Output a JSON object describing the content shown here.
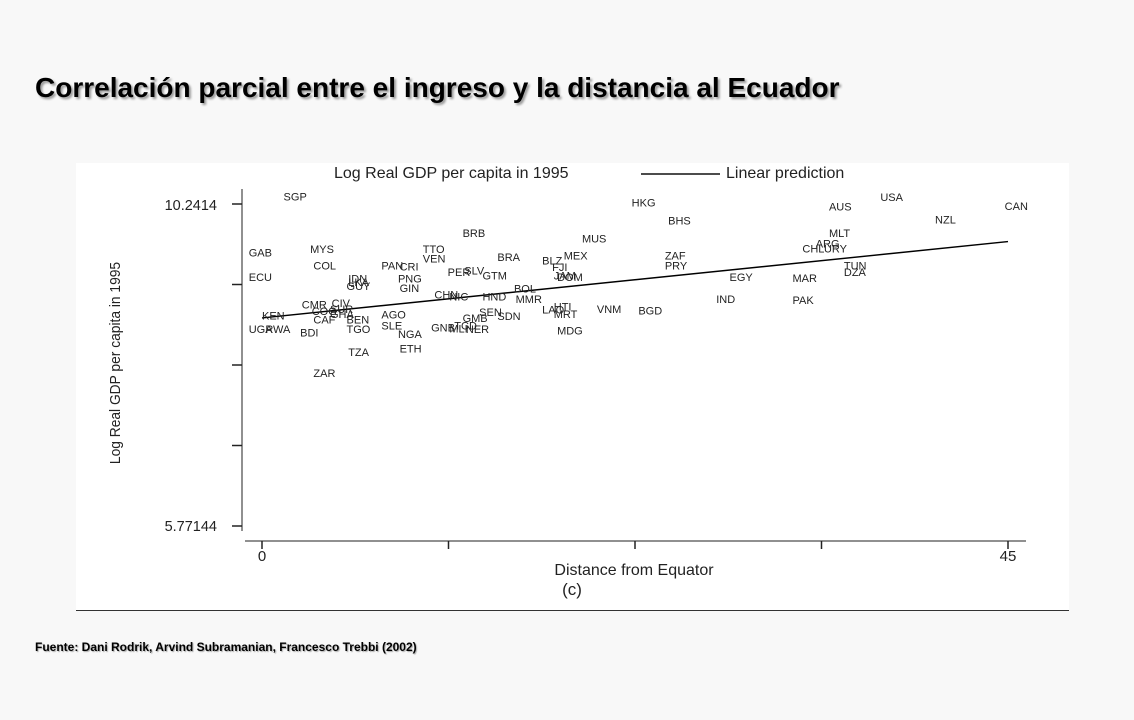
{
  "slide": {
    "title": "Correlación parcial entre el ingreso y la distancia al Ecuador",
    "source": "Fuente: Dani Rodrik, Arvind Subramanian, Francesco Trebbi (2002)"
  },
  "chart_data": {
    "type": "scatter",
    "xlabel": "Distance from Equator",
    "ylabel": "Log Real GDP per capita in 1995",
    "caption": "(c)",
    "xlim": [
      0,
      45
    ],
    "ylim": [
      5.77144,
      10.2414
    ],
    "x_tick_labels": [
      "0",
      "45"
    ],
    "y_tick_labels": [
      "10.2414",
      "5.77144"
    ],
    "legend": [
      "Log Real GDP per capita in 1995",
      "Linear prediction"
    ],
    "legend_position": "top",
    "series": [
      {
        "name": "Log Real GDP per capita in 1995",
        "marker": "country-code",
        "points": [
          {
            "label": "SGP",
            "x": 1.3,
            "y": 10.29
          },
          {
            "label": "HKG",
            "x": 22.3,
            "y": 10.21
          },
          {
            "label": "USA",
            "x": 37.3,
            "y": 10.28
          },
          {
            "label": "AUS",
            "x": 34.2,
            "y": 10.15
          },
          {
            "label": "CAN",
            "x": 44.8,
            "y": 10.16
          },
          {
            "label": "NZL",
            "x": 40.6,
            "y": 9.97
          },
          {
            "label": "BHS",
            "x": 24.5,
            "y": 9.96
          },
          {
            "label": "BRB",
            "x": 12.1,
            "y": 9.78
          },
          {
            "label": "MLT",
            "x": 34.2,
            "y": 9.78
          },
          {
            "label": "MUS",
            "x": 19.3,
            "y": 9.71
          },
          {
            "label": "ARG",
            "x": 33.4,
            "y": 9.64
          },
          {
            "label": "CHL",
            "x": 32.6,
            "y": 9.57
          },
          {
            "label": "URY",
            "x": 33.9,
            "y": 9.57
          },
          {
            "label": "MYS",
            "x": 2.9,
            "y": 9.56
          },
          {
            "label": "TTO",
            "x": 9.7,
            "y": 9.56
          },
          {
            "label": "GAB",
            "x": -0.8,
            "y": 9.51
          },
          {
            "label": "MEX",
            "x": 18.2,
            "y": 9.47
          },
          {
            "label": "ZAF",
            "x": 24.3,
            "y": 9.47
          },
          {
            "label": "BRA",
            "x": 14.2,
            "y": 9.45
          },
          {
            "label": "VEN",
            "x": 9.7,
            "y": 9.43
          },
          {
            "label": "BLZ",
            "x": 16.9,
            "y": 9.4
          },
          {
            "label": "COL",
            "x": 3.1,
            "y": 9.33
          },
          {
            "label": "PAN",
            "x": 7.2,
            "y": 9.33
          },
          {
            "label": "CRI",
            "x": 8.3,
            "y": 9.32
          },
          {
            "label": "FJI",
            "x": 17.5,
            "y": 9.31
          },
          {
            "label": "PRY",
            "x": 24.3,
            "y": 9.33
          },
          {
            "label": "TUN",
            "x": 35.1,
            "y": 9.33
          },
          {
            "label": "SLV",
            "x": 12.2,
            "y": 9.26
          },
          {
            "label": "PER",
            "x": 11.2,
            "y": 9.24
          },
          {
            "label": "DZA",
            "x": 35.1,
            "y": 9.24
          },
          {
            "label": "GTM",
            "x": 13.3,
            "y": 9.19
          },
          {
            "label": "JAM",
            "x": 17.6,
            "y": 9.19
          },
          {
            "label": "DOM",
            "x": 17.8,
            "y": 9.17
          },
          {
            "label": "ECU",
            "x": -0.8,
            "y": 9.17
          },
          {
            "label": "EGY",
            "x": 28.2,
            "y": 9.17
          },
          {
            "label": "MAR",
            "x": 32.0,
            "y": 9.16
          },
          {
            "label": "IDN",
            "x": 5.2,
            "y": 9.15
          },
          {
            "label": "PNG",
            "x": 8.2,
            "y": 9.15
          },
          {
            "label": "LKA",
            "x": 5.2,
            "y": 9.1
          },
          {
            "label": "GUY",
            "x": 5.1,
            "y": 9.05
          },
          {
            "label": "GIN",
            "x": 8.3,
            "y": 9.02
          },
          {
            "label": "BOL",
            "x": 15.2,
            "y": 9.01
          },
          {
            "label": "CHN",
            "x": 10.4,
            "y": 8.93
          },
          {
            "label": "NIC",
            "x": 11.3,
            "y": 8.9
          },
          {
            "label": "HND",
            "x": 13.3,
            "y": 8.9
          },
          {
            "label": "MMR",
            "x": 15.3,
            "y": 8.87
          },
          {
            "label": "IND",
            "x": 27.4,
            "y": 8.87
          },
          {
            "label": "PAK",
            "x": 32.0,
            "y": 8.85
          },
          {
            "label": "CMR",
            "x": 2.4,
            "y": 8.79
          },
          {
            "label": "CIV",
            "x": 4.2,
            "y": 8.81
          },
          {
            "label": "HTI",
            "x": 17.6,
            "y": 8.76
          },
          {
            "label": "SUR",
            "x": 4.1,
            "y": 8.73
          },
          {
            "label": "VNM",
            "x": 20.2,
            "y": 8.73
          },
          {
            "label": "BGD",
            "x": 22.7,
            "y": 8.71
          },
          {
            "label": "LAO",
            "x": 16.9,
            "y": 8.72
          },
          {
            "label": "COG",
            "x": 3.0,
            "y": 8.7
          },
          {
            "label": "SEN",
            "x": 13.1,
            "y": 8.69
          },
          {
            "label": "GHA",
            "x": 4.1,
            "y": 8.66
          },
          {
            "label": "AGO",
            "x": 7.2,
            "y": 8.65
          },
          {
            "label": "MRT",
            "x": 17.6,
            "y": 8.66
          },
          {
            "label": "KEN",
            "x": 0.0,
            "y": 8.64
          },
          {
            "label": "SDN",
            "x": 14.2,
            "y": 8.63
          },
          {
            "label": "GMB",
            "x": 12.1,
            "y": 8.6
          },
          {
            "label": "CAF",
            "x": 3.1,
            "y": 8.58
          },
          {
            "label": "BEN",
            "x": 5.1,
            "y": 8.58
          },
          {
            "label": "SLE",
            "x": 7.2,
            "y": 8.5
          },
          {
            "label": "GNB",
            "x": 10.2,
            "y": 8.47
          },
          {
            "label": "TCD",
            "x": 11.6,
            "y": 8.5
          },
          {
            "label": "MLI",
            "x": 11.3,
            "y": 8.46
          },
          {
            "label": "NER",
            "x": 12.3,
            "y": 8.45
          },
          {
            "label": "UGA",
            "x": -0.8,
            "y": 8.45
          },
          {
            "label": "RWA",
            "x": 0.2,
            "y": 8.45
          },
          {
            "label": "TGO",
            "x": 5.1,
            "y": 8.45
          },
          {
            "label": "MDG",
            "x": 17.8,
            "y": 8.43
          },
          {
            "label": "BDI",
            "x": 2.3,
            "y": 8.4
          },
          {
            "label": "NGA",
            "x": 8.2,
            "y": 8.38
          },
          {
            "label": "ETH",
            "x": 8.3,
            "y": 8.18
          },
          {
            "label": "TZA",
            "x": 5.2,
            "y": 8.13
          },
          {
            "label": "ZAR",
            "x": 3.1,
            "y": 7.84
          }
        ]
      },
      {
        "name": "Linear prediction",
        "type": "line",
        "points": [
          {
            "x": 0,
            "y": 8.66
          },
          {
            "x": 45,
            "y": 9.72
          }
        ]
      }
    ]
  }
}
